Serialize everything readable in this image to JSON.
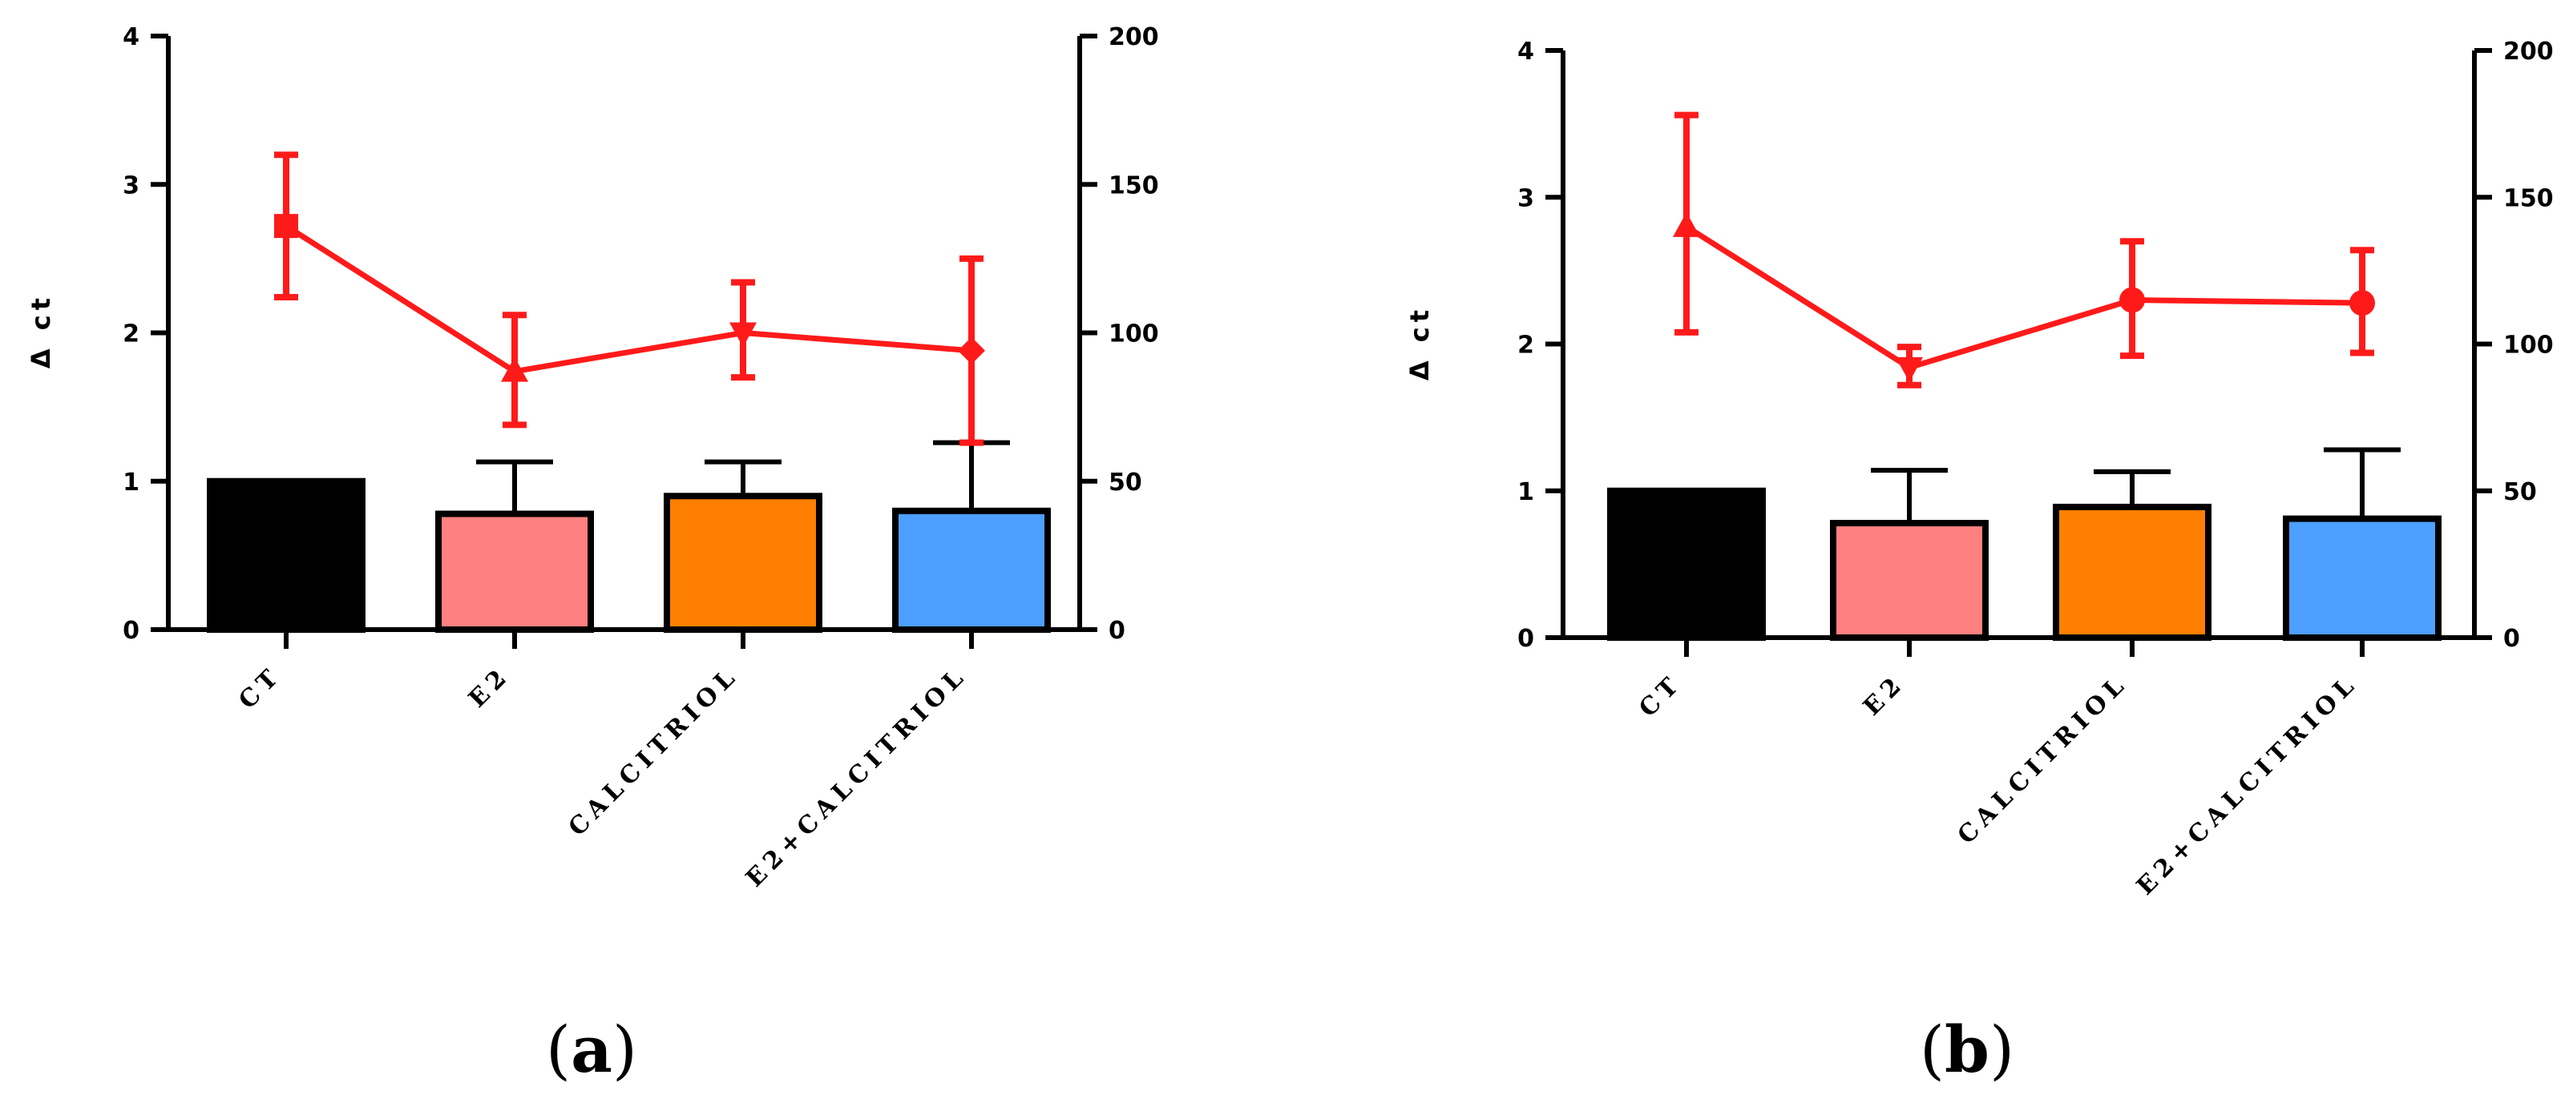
{
  "chart_data": [
    {
      "type": "bar+line",
      "panel_label": {
        "open": "(",
        "letter": "a",
        "close": ")"
      },
      "categories": [
        "CT",
        "E2",
        "CALCITRIOL",
        "E2+CALCITRIOL"
      ],
      "ylabel": "Δ ct",
      "ylim": [
        0,
        4
      ],
      "yticks": [
        "0",
        "1",
        "2",
        "3",
        "4"
      ],
      "y2lim": [
        0,
        200
      ],
      "y2ticks": [
        "0",
        "50",
        "100",
        "150",
        "200"
      ],
      "bars": {
        "axis": "left",
        "values": [
          1.0,
          0.78,
          0.9,
          0.8
        ],
        "error_upper": [
          1.0,
          1.13,
          1.13,
          1.26
        ],
        "colors": [
          "#000000",
          "#ff8080",
          "#ff8000",
          "#4da0ff"
        ]
      },
      "line": {
        "axis": "right",
        "color": "#ff1a1a",
        "values": [
          136,
          87,
          100,
          94
        ],
        "error_low": [
          112,
          69,
          85,
          63
        ],
        "error_high": [
          160,
          106,
          117,
          125
        ],
        "markers": [
          "square",
          "triangle-up",
          "triangle-down",
          "diamond"
        ]
      }
    },
    {
      "type": "bar+line",
      "panel_label": {
        "open": "(",
        "letter": "b",
        "close": ")"
      },
      "categories": [
        "CT",
        "E2",
        "CALCITRIOL",
        "E2+CALCITRIOL"
      ],
      "ylabel": "Δ ct",
      "ylim": [
        0,
        4
      ],
      "yticks": [
        "0",
        "1",
        "2",
        "3",
        "4"
      ],
      "y2lim": [
        0,
        200
      ],
      "y2ticks": [
        "0",
        "50",
        "100",
        "150",
        "200"
      ],
      "bars": {
        "axis": "left",
        "values": [
          1.0,
          0.78,
          0.89,
          0.81
        ],
        "error_upper": [
          1.0,
          1.14,
          1.13,
          1.28
        ],
        "colors": [
          "#000000",
          "#ff8080",
          "#ff8000",
          "#4da0ff"
        ]
      },
      "line": {
        "axis": "right",
        "color": "#ff1a1a",
        "values": [
          140,
          92,
          115,
          114
        ],
        "error_low": [
          104,
          86,
          96,
          97
        ],
        "error_high": [
          178,
          99,
          135,
          132
        ],
        "markers": [
          "triangle-up",
          "triangle-down",
          "circle",
          "circle"
        ]
      }
    }
  ]
}
